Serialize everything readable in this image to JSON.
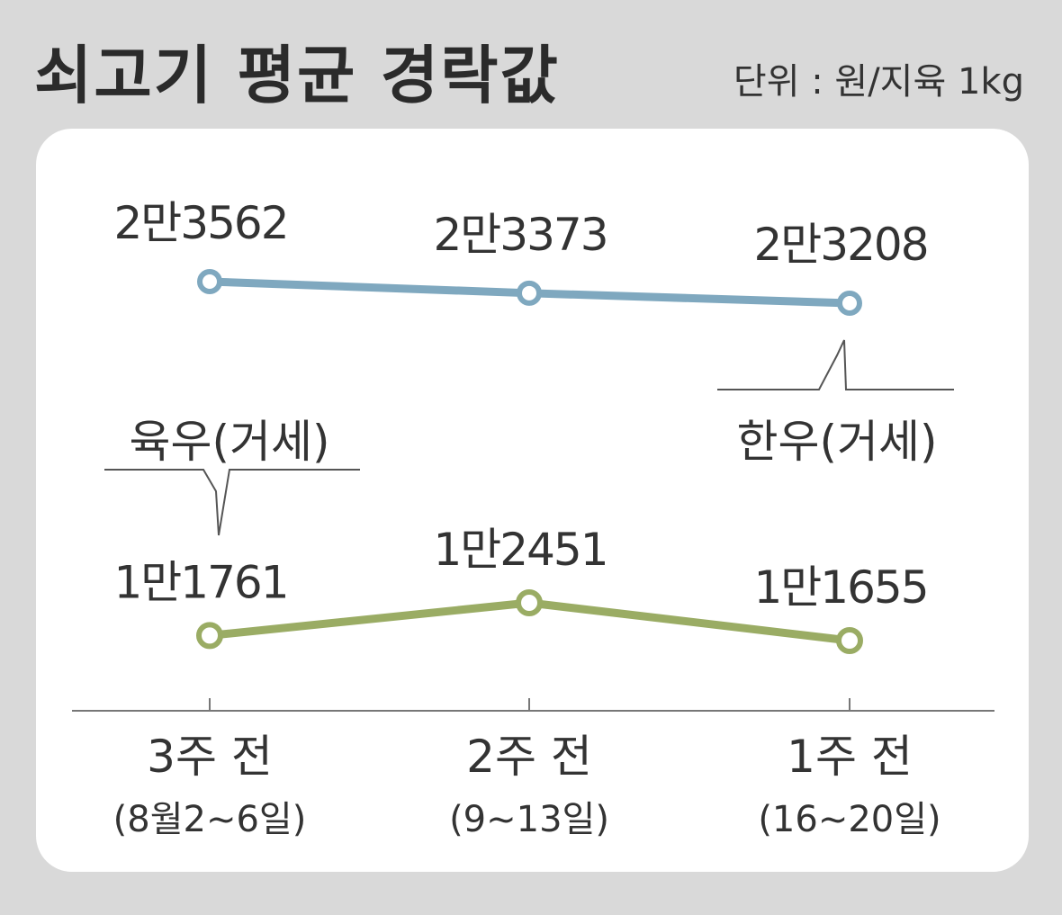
{
  "header": {
    "title": "쇠고기 평균 경락값",
    "unit": "단위 : 원/지육 1kg"
  },
  "chart_data": {
    "type": "line",
    "categories": [
      "3주 전",
      "2주 전",
      "1주 전"
    ],
    "category_sublabels": [
      "(8월2~6일)",
      "(9~13일)",
      "(16~20일)"
    ],
    "series": [
      {
        "name": "한우(거세)",
        "values": [
          23562,
          23373,
          23208
        ],
        "labels": [
          "2만3562",
          "2만3373",
          "2만3208"
        ],
        "color": "#7fa8bf"
      },
      {
        "name": "육우(거세)",
        "values": [
          11761,
          12451,
          11655
        ],
        "labels": [
          "1만1761",
          "1만2451",
          "1만1655"
        ],
        "color": "#9aac64"
      }
    ]
  }
}
